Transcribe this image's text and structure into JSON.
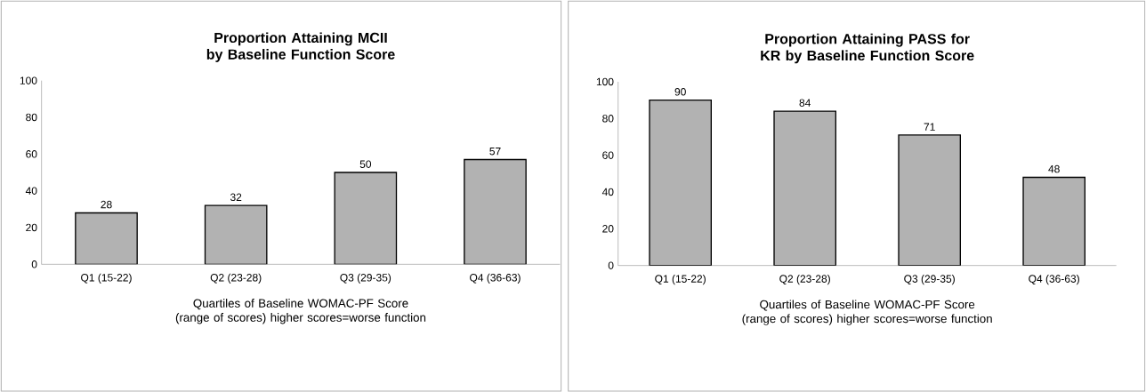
{
  "chart_data": [
    {
      "type": "bar",
      "title": "Proportion Attaining MCII by Baseline Function Score",
      "xlabel": "Quartiles of Baseline WOMAC-PF Score (range of scores) higher scores=worse function",
      "categories": [
        "Q1 (15-22)",
        "Q2 (23-28)",
        "Q3 (29-35)",
        "Q4 (36-63)"
      ],
      "values": [
        28,
        32,
        50,
        57
      ],
      "color": "#b2b2b2",
      "ylim": [
        0,
        100
      ],
      "yticks": [
        0,
        20,
        40,
        60,
        80,
        100
      ],
      "data_labels": true
    },
    {
      "type": "bar",
      "title": "Proportion Attaining PASS for KR by Baseline Function Score",
      "xlabel": "Quartiles of Baseline WOMAC-PF Score (range of scores) higher scores=worse function",
      "categories": [
        "Q1 (15-22)",
        "Q2 (23-28)",
        "Q3 (29-35)",
        "Q4 (36-63)"
      ],
      "values": [
        90,
        84,
        71,
        48
      ],
      "color": "#b2b2b2",
      "ylim": [
        0,
        100
      ],
      "yticks": [
        0,
        20,
        40,
        60,
        80,
        100
      ],
      "data_labels": true
    }
  ]
}
